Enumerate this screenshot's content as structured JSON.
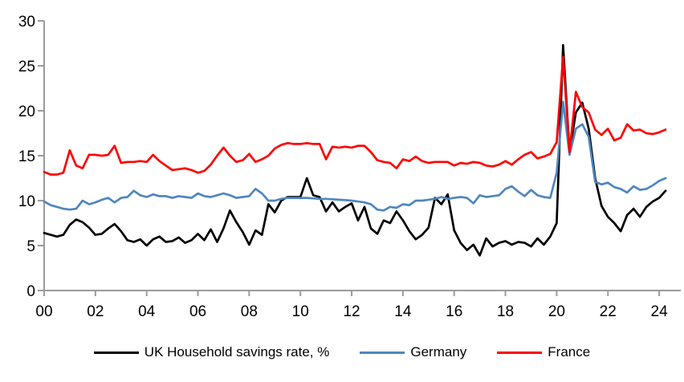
{
  "chart_data": {
    "type": "line",
    "title": "",
    "grid": false,
    "legend_position": "bottom",
    "axis_color": "#9B9B9B",
    "x_start": 2000,
    "x_step": 0.25,
    "x_axis": {
      "tick_years": [
        2000,
        2002,
        2004,
        2006,
        2008,
        2010,
        2012,
        2014,
        2016,
        2018,
        2020,
        2022,
        2024
      ],
      "tick_labels": [
        "00",
        "02",
        "04",
        "06",
        "08",
        "10",
        "12",
        "14",
        "16",
        "18",
        "20",
        "22",
        "24"
      ]
    },
    "y_axis": {
      "min": 0,
      "max": 30,
      "tick_values": [
        0,
        5,
        10,
        15,
        20,
        25,
        30
      ],
      "tick_labels": [
        "0",
        "5",
        "10",
        "15",
        "20",
        "25",
        "30"
      ]
    },
    "series": [
      {
        "name": "UK Household savings rate, %",
        "color": "#000000",
        "values": [
          6.4,
          6.2,
          6.0,
          6.2,
          7.3,
          7.9,
          7.6,
          7.0,
          6.2,
          6.3,
          6.9,
          7.4,
          6.6,
          5.6,
          5.4,
          5.7,
          5.0,
          5.7,
          6.0,
          5.4,
          5.5,
          5.9,
          5.3,
          5.6,
          6.3,
          5.6,
          6.8,
          5.4,
          6.9,
          8.9,
          7.6,
          6.5,
          5.1,
          6.7,
          6.2,
          9.6,
          8.7,
          10.0,
          10.4,
          10.4,
          10.4,
          12.5,
          10.6,
          10.4,
          8.8,
          9.8,
          8.8,
          9.3,
          9.7,
          7.8,
          9.3,
          6.9,
          6.3,
          7.8,
          7.5,
          8.8,
          7.8,
          6.6,
          5.7,
          6.2,
          7.0,
          10.3,
          9.6,
          10.7,
          6.7,
          5.3,
          4.5,
          5.1,
          3.9,
          5.8,
          4.9,
          5.3,
          5.5,
          5.1,
          5.4,
          5.3,
          4.9,
          5.8,
          5.1,
          6.0,
          7.5,
          27.3,
          15.4,
          19.8,
          20.9,
          18.0,
          12.5,
          9.4,
          8.2,
          7.5,
          6.6,
          8.4,
          9.1,
          8.2,
          9.3,
          9.9,
          10.3,
          11.1
        ]
      },
      {
        "name": "Germany",
        "color": "#4E86C0",
        "values": [
          9.9,
          9.5,
          9.3,
          9.1,
          9.0,
          9.1,
          10.0,
          9.6,
          9.8,
          10.1,
          10.3,
          9.8,
          10.3,
          10.4,
          11.1,
          10.6,
          10.4,
          10.7,
          10.5,
          10.5,
          10.3,
          10.5,
          10.4,
          10.3,
          10.8,
          10.5,
          10.4,
          10.6,
          10.8,
          10.6,
          10.3,
          10.4,
          10.5,
          11.3,
          10.8,
          10.0,
          10.0,
          10.2,
          10.3,
          10.3,
          10.3,
          10.3,
          10.25,
          10.2,
          10.2,
          10.15,
          10.1,
          10.05,
          10.0,
          9.9,
          9.8,
          9.6,
          9.0,
          8.9,
          9.3,
          9.2,
          9.6,
          9.5,
          10.0,
          10.0,
          10.1,
          10.2,
          10.4,
          10.2,
          10.3,
          10.4,
          10.3,
          9.7,
          10.6,
          10.4,
          10.5,
          10.6,
          11.3,
          11.6,
          11.0,
          10.5,
          11.2,
          10.6,
          10.4,
          10.3,
          13.1,
          21.0,
          15.1,
          18.0,
          18.5,
          17.1,
          12.1,
          11.8,
          12.0,
          11.5,
          11.3,
          10.9,
          11.6,
          11.2,
          11.3,
          11.7,
          12.2,
          12.5
        ]
      },
      {
        "name": "France",
        "color": "#FF0000",
        "values": [
          13.2,
          12.9,
          12.9,
          13.1,
          15.6,
          13.9,
          13.6,
          15.1,
          15.1,
          15.0,
          15.1,
          16.1,
          14.2,
          14.3,
          14.3,
          14.4,
          14.3,
          15.1,
          14.4,
          13.9,
          13.4,
          13.5,
          13.6,
          13.4,
          13.1,
          13.3,
          14.0,
          15.0,
          15.9,
          15.0,
          14.3,
          14.5,
          15.2,
          14.3,
          14.6,
          15.0,
          15.8,
          16.2,
          16.4,
          16.3,
          16.3,
          16.4,
          16.3,
          16.3,
          14.6,
          16.0,
          15.9,
          16.0,
          15.9,
          16.1,
          16.1,
          15.4,
          14.5,
          14.3,
          14.2,
          13.6,
          14.6,
          14.4,
          14.9,
          14.4,
          14.2,
          14.3,
          14.3,
          14.3,
          13.9,
          14.2,
          14.1,
          14.3,
          14.2,
          13.9,
          13.8,
          14.0,
          14.4,
          14.0,
          14.6,
          15.1,
          15.4,
          14.7,
          14.9,
          15.2,
          16.5,
          26.0,
          15.4,
          22.1,
          20.4,
          19.8,
          17.9,
          17.3,
          18.0,
          16.7,
          17.0,
          18.5,
          17.8,
          17.9,
          17.5,
          17.4,
          17.6,
          17.9
        ]
      }
    ]
  }
}
